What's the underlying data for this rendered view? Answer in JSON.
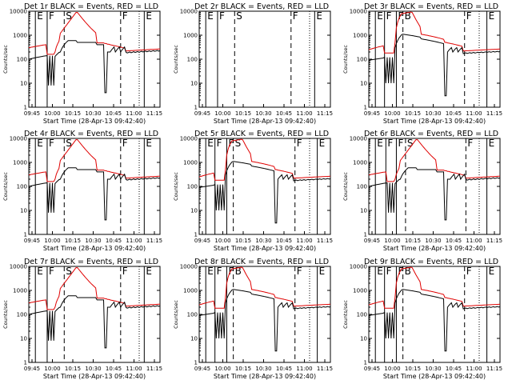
{
  "figure": {
    "x_tick_labels": [
      "09:45",
      "10:00",
      "10:15",
      "10:30",
      "10:45",
      "11:00",
      "11:15"
    ],
    "y_tick_labels": [
      "1",
      "10",
      "100",
      "1000",
      "10000"
    ],
    "ylabel": "Counts/sec",
    "xlabel": "Start Time (28-Apr-13 09:42:40)",
    "colors": {
      "events": "#000000",
      "lld": "#e00000",
      "axes": "#000000"
    }
  },
  "chart_data": [
    {
      "type": "line",
      "title": "Det 1r BLACK = Events, RED = LLD",
      "profile": "flare",
      "markers": [
        {
          "t": 5,
          "label": "E"
        },
        {
          "t": 14,
          "label": "F"
        },
        {
          "t": 27,
          "label": "S"
        },
        {
          "t": 70,
          "label": "F"
        },
        {
          "t": 88,
          "label": "E"
        }
      ],
      "xlim": [
        0,
        100
      ],
      "ylim": [
        1,
        10000
      ],
      "yscale": "log",
      "series": [
        {
          "color": "black",
          "values": []
        },
        {
          "color": "red",
          "values": []
        }
      ]
    },
    {
      "type": "line",
      "title": "Det 2r BLACK = Events, RED = LLD",
      "profile": "empty",
      "markers": [
        {
          "t": 5,
          "label": "E"
        },
        {
          "t": 14,
          "label": "F"
        },
        {
          "t": 27,
          "label": "S"
        },
        {
          "t": 70,
          "label": "F"
        },
        {
          "t": 88,
          "label": "E"
        }
      ],
      "xlim": [
        0,
        100
      ],
      "ylim": [
        1,
        10000
      ],
      "yscale": "log",
      "series": []
    },
    {
      "type": "line",
      "title": "Det 3r BLACK = Events, RED = LLD",
      "profile": "flare_small",
      "markers": [
        {
          "t": 5,
          "label": "E"
        },
        {
          "t": 12,
          "label": "F"
        },
        {
          "t": 21,
          "label": "F"
        },
        {
          "t": 26,
          "label": "B"
        },
        {
          "t": 73,
          "label": "F"
        },
        {
          "t": 90,
          "label": "E"
        }
      ],
      "xlim": [
        0,
        100
      ],
      "ylim": [
        1,
        10000
      ],
      "yscale": "log",
      "series": [
        {
          "color": "black",
          "values": []
        },
        {
          "color": "red",
          "values": []
        }
      ]
    },
    {
      "type": "line",
      "title": "Det 4r BLACK = Events, RED = LLD",
      "profile": "flare",
      "markers": [
        {
          "t": 5,
          "label": "E"
        },
        {
          "t": 14,
          "label": "F"
        },
        {
          "t": 27,
          "label": "S"
        },
        {
          "t": 70,
          "label": "F"
        },
        {
          "t": 88,
          "label": "E"
        }
      ],
      "xlim": [
        0,
        100
      ],
      "ylim": [
        1,
        10000
      ],
      "yscale": "log",
      "series": [
        {
          "color": "black",
          "values": []
        },
        {
          "color": "red",
          "values": []
        }
      ]
    },
    {
      "type": "line",
      "title": "Det 5r BLACK = Events, RED = LLD",
      "profile": "flare_small",
      "markers": [
        {
          "t": 5,
          "label": "E"
        },
        {
          "t": 12,
          "label": "F"
        },
        {
          "t": 21,
          "label": "F"
        },
        {
          "t": 26,
          "label": "S"
        },
        {
          "t": 73,
          "label": "F"
        },
        {
          "t": 90,
          "label": "E"
        }
      ],
      "xlim": [
        0,
        100
      ],
      "ylim": [
        1,
        10000
      ],
      "yscale": "log",
      "series": [
        {
          "color": "black",
          "values": []
        },
        {
          "color": "red",
          "values": []
        }
      ]
    },
    {
      "type": "line",
      "title": "Det 6r BLACK = Events, RED = LLD",
      "profile": "flare",
      "markers": [
        {
          "t": 5,
          "label": "E"
        },
        {
          "t": 13,
          "label": "F"
        },
        {
          "t": 21,
          "label": "F"
        },
        {
          "t": 28,
          "label": "S"
        },
        {
          "t": 74,
          "label": "F"
        },
        {
          "t": 90,
          "label": "E"
        }
      ],
      "xlim": [
        0,
        100
      ],
      "ylim": [
        1,
        10000
      ],
      "yscale": "log",
      "series": [
        {
          "color": "black",
          "values": []
        },
        {
          "color": "red",
          "values": []
        }
      ]
    },
    {
      "type": "line",
      "title": "Det 7r BLACK = Events, RED = LLD",
      "profile": "flare",
      "markers": [
        {
          "t": 5,
          "label": "E"
        },
        {
          "t": 14,
          "label": "F"
        },
        {
          "t": 27,
          "label": "S"
        },
        {
          "t": 70,
          "label": "F"
        },
        {
          "t": 88,
          "label": "E"
        }
      ],
      "xlim": [
        0,
        100
      ],
      "ylim": [
        1,
        10000
      ],
      "yscale": "log",
      "series": [
        {
          "color": "black",
          "values": []
        },
        {
          "color": "red",
          "values": []
        }
      ]
    },
    {
      "type": "line",
      "title": "Det 8r BLACK = Events, RED = LLD",
      "profile": "flare_small",
      "markers": [
        {
          "t": 5,
          "label": "E"
        },
        {
          "t": 12,
          "label": "F"
        },
        {
          "t": 21,
          "label": "F"
        },
        {
          "t": 26,
          "label": "B"
        },
        {
          "t": 73,
          "label": "F"
        },
        {
          "t": 90,
          "label": "E"
        }
      ],
      "xlim": [
        0,
        100
      ],
      "ylim": [
        1,
        10000
      ],
      "yscale": "log",
      "series": [
        {
          "color": "black",
          "values": []
        },
        {
          "color": "red",
          "values": []
        }
      ]
    },
    {
      "type": "line",
      "title": "Det 9r BLACK = Events, RED = LLD",
      "profile": "flare_small",
      "markers": [
        {
          "t": 5,
          "label": "E"
        },
        {
          "t": 12,
          "label": "F"
        },
        {
          "t": 21,
          "label": "F"
        },
        {
          "t": 26,
          "label": "B"
        },
        {
          "t": 73,
          "label": "F"
        },
        {
          "t": 90,
          "label": "E"
        }
      ],
      "xlim": [
        0,
        100
      ],
      "ylim": [
        1,
        10000
      ],
      "yscale": "log",
      "series": [
        {
          "color": "black",
          "values": []
        },
        {
          "color": "red",
          "values": []
        }
      ]
    }
  ]
}
